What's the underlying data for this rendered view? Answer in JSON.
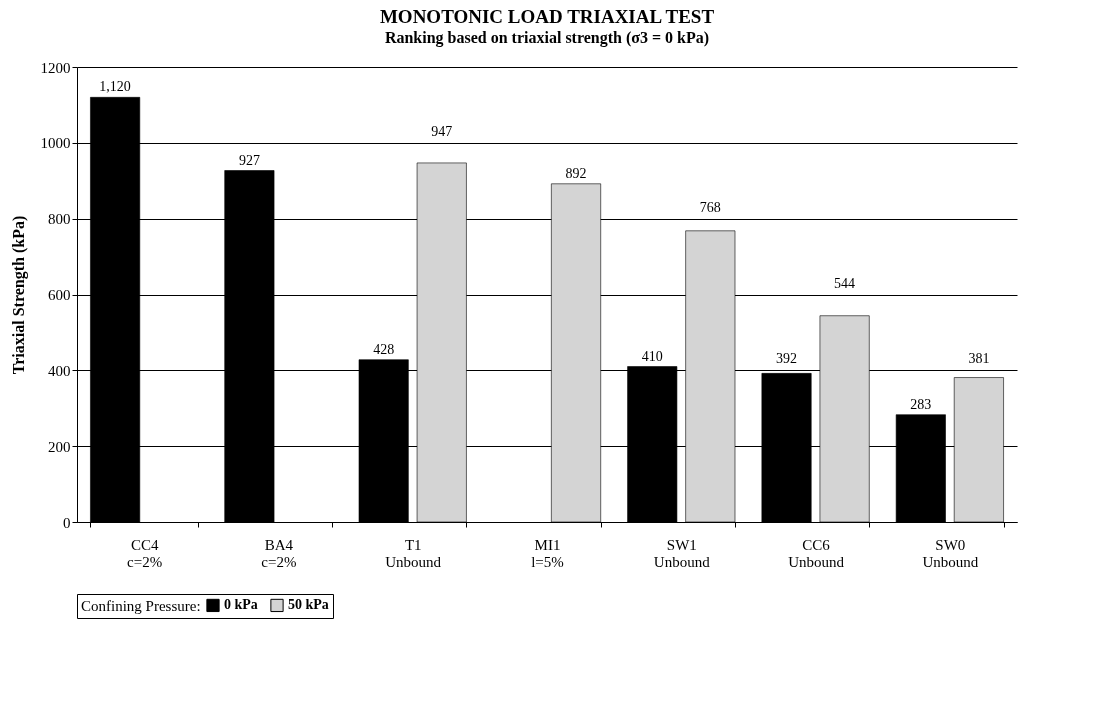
{
  "chart_data": {
    "type": "bar",
    "title": "MONOTONIC LOAD TRIAXIAL TEST",
    "subtitle": "Ranking based on triaxial strength (σ3 = 0 kPa)",
    "ylabel": "Triaxial Strength (kPa)",
    "legend_title": "Confining Pressure:",
    "categories": [
      "CC4\nc=2%",
      "BA4\nc=2%",
      "T1\nUnbound",
      "MI1\nl=5%",
      "SW1\nUnbound",
      "CC6\nUnbound",
      "SW0\nUnbound"
    ],
    "series": [
      {
        "name": "0 kPa",
        "color": "#000000",
        "values": [
          1120,
          927,
          428,
          null,
          410,
          392,
          283
        ],
        "value_labels": [
          "1,120",
          "927",
          "428",
          null,
          "410",
          "392",
          "283"
        ]
      },
      {
        "name": "50 kPa",
        "color": "#d4d4d4",
        "values": [
          null,
          null,
          947,
          892,
          768,
          544,
          381
        ],
        "value_labels": [
          null,
          null,
          "947",
          "892",
          "768",
          "544",
          "381"
        ]
      }
    ],
    "ylim": [
      0,
      1200
    ],
    "yticks": [
      0,
      200,
      400,
      600,
      800,
      1000,
      1200
    ],
    "grid": "y",
    "legend": "bottom"
  }
}
